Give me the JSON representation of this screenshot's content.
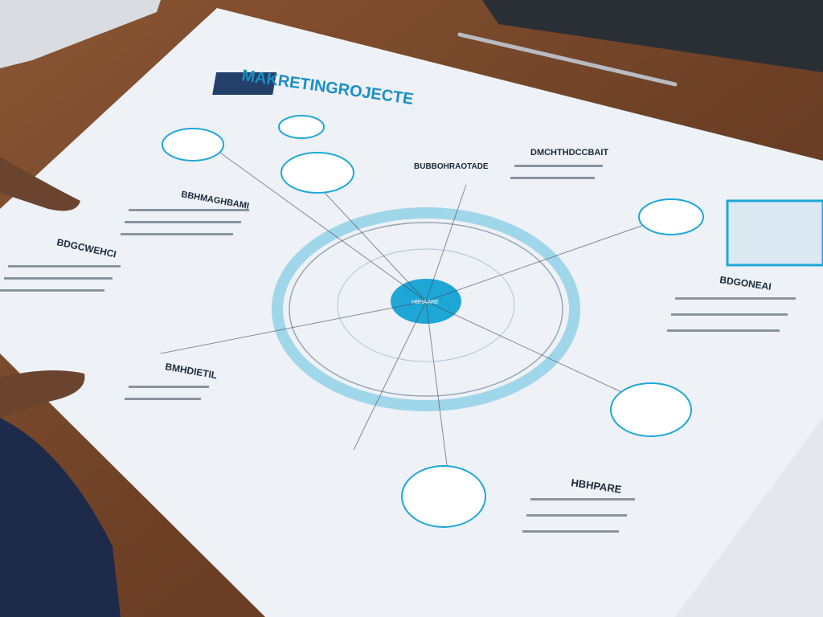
{
  "scene": {
    "title": "MAKRETINGROJECTE",
    "headings": [
      "DMCHTHDCCBAIT",
      "BUBBOHRAOTADE",
      "BBHMAGHBAMI",
      "BDGCWEHCI",
      "BMHDIETIL",
      "BDGONEAI",
      "HBHPARE"
    ],
    "center_label": "HBHAARE"
  },
  "colors": {
    "desk": "#7a4a2c",
    "paper": "#eef1f6",
    "accent": "#1ea7d6",
    "ink": "#1b2a3a"
  }
}
